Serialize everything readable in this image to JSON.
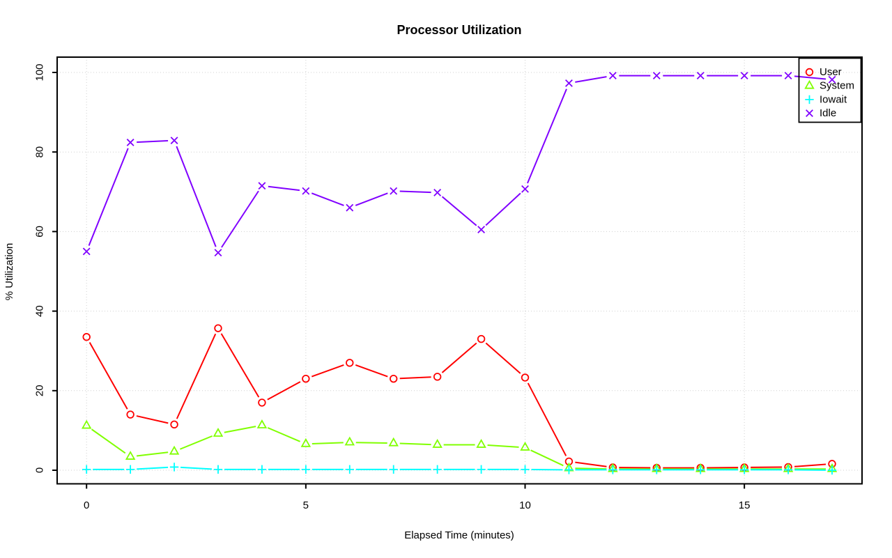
{
  "title": "Processor Utilization",
  "chart_data": {
    "type": "line",
    "title": "Processor Utilization",
    "xlabel": "Elapsed Time (minutes)",
    "ylabel": "% Utilization",
    "x": [
      0,
      1,
      2,
      3,
      4,
      5,
      6,
      7,
      8,
      9,
      10,
      11,
      12,
      13,
      14,
      15,
      16,
      17
    ],
    "series": [
      {
        "name": "User",
        "color": "#ff0000",
        "marker": "circle",
        "values": [
          33.5,
          14.0,
          11.5,
          35.7,
          17.0,
          23.0,
          27.0,
          23.0,
          23.5,
          33.0,
          23.3,
          2.2,
          0.7,
          0.6,
          0.6,
          0.7,
          0.8,
          1.6
        ]
      },
      {
        "name": "System",
        "color": "#80ff00",
        "marker": "triangle",
        "values": [
          11.2,
          3.4,
          4.7,
          9.2,
          11.3,
          6.6,
          7.0,
          6.8,
          6.4,
          6.4,
          5.7,
          0.5,
          0.3,
          0.3,
          0.3,
          0.3,
          0.3,
          0.3
        ]
      },
      {
        "name": "Iowait",
        "color": "#00ffff",
        "marker": "plus",
        "values": [
          0.2,
          0.2,
          0.8,
          0.2,
          0.2,
          0.2,
          0.2,
          0.2,
          0.2,
          0.2,
          0.2,
          0.1,
          0.1,
          0.1,
          0.1,
          0.1,
          0.1,
          0.0
        ]
      },
      {
        "name": "Idle",
        "color": "#8000ff",
        "marker": "x",
        "values": [
          55.0,
          82.4,
          82.9,
          54.7,
          71.5,
          70.2,
          66.0,
          70.2,
          69.8,
          60.5,
          70.7,
          97.3,
          99.2,
          99.2,
          99.2,
          99.2,
          99.2,
          98.2
        ]
      }
    ],
    "x_ticks": [
      0,
      5,
      10,
      15
    ],
    "y_ticks": [
      0,
      20,
      40,
      60,
      80,
      100
    ],
    "xlim": [
      0,
      17
    ],
    "ylim": [
      0,
      100
    ],
    "grid": true,
    "grid_style": "dotted",
    "grid_color": "#cfcfcf",
    "axis_color": "#000000",
    "background_color": "#ffffff",
    "legend_position": "top-right",
    "legend_labels": [
      "User",
      "System",
      "Iowait",
      "Idle"
    ]
  }
}
